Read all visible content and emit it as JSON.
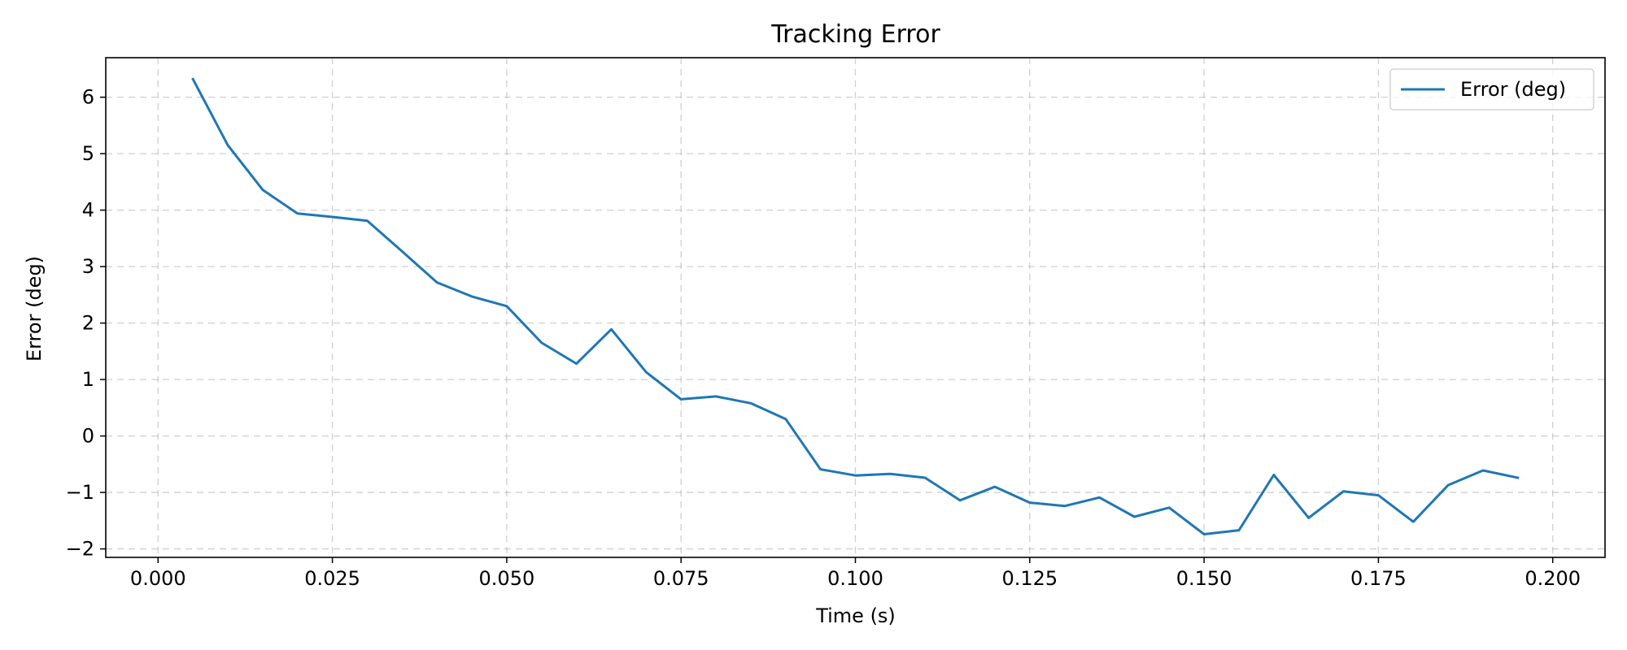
{
  "chart_data": {
    "type": "line",
    "title": "Tracking Error",
    "xlabel": "Time (s)",
    "ylabel": "Error (deg)",
    "xlim": [
      -0.0075,
      0.2075
    ],
    "ylim": [
      -2.15,
      6.7
    ],
    "xticks": [
      0.0,
      0.025,
      0.05,
      0.075,
      0.1,
      0.125,
      0.15,
      0.175,
      0.2
    ],
    "xtick_labels": [
      "0.000",
      "0.025",
      "0.050",
      "0.075",
      "0.100",
      "0.125",
      "0.150",
      "0.175",
      "0.200"
    ],
    "yticks": [
      -2,
      -1,
      0,
      1,
      2,
      3,
      4,
      5,
      6
    ],
    "ytick_labels": [
      "−2",
      "−1",
      "0",
      "1",
      "2",
      "3",
      "4",
      "5",
      "6"
    ],
    "grid": true,
    "legend_position": "top-right",
    "colors": {
      "series": "#1f77b4"
    },
    "series": [
      {
        "name": "Error (deg)",
        "x": [
          0.005,
          0.01,
          0.015,
          0.02,
          0.025,
          0.03,
          0.035,
          0.04,
          0.045,
          0.05,
          0.055,
          0.06,
          0.065,
          0.07,
          0.075,
          0.08,
          0.085,
          0.09,
          0.095,
          0.1,
          0.105,
          0.11,
          0.115,
          0.12,
          0.125,
          0.13,
          0.135,
          0.14,
          0.145,
          0.15,
          0.155,
          0.16,
          0.165,
          0.17,
          0.175,
          0.18,
          0.185,
          0.19,
          0.195
        ],
        "values": [
          6.32,
          5.15,
          4.36,
          3.94,
          3.88,
          3.81,
          3.27,
          2.72,
          2.47,
          2.3,
          1.65,
          1.28,
          1.89,
          1.13,
          0.65,
          0.7,
          0.58,
          0.3,
          -0.59,
          -0.7,
          -0.67,
          -0.74,
          -1.14,
          -0.9,
          -1.18,
          -1.24,
          -1.09,
          -1.43,
          -1.27,
          -1.74,
          -1.67,
          -0.69,
          -1.45,
          -0.98,
          -1.05,
          -1.52,
          -0.87,
          -0.61,
          -0.74
        ]
      }
    ]
  }
}
